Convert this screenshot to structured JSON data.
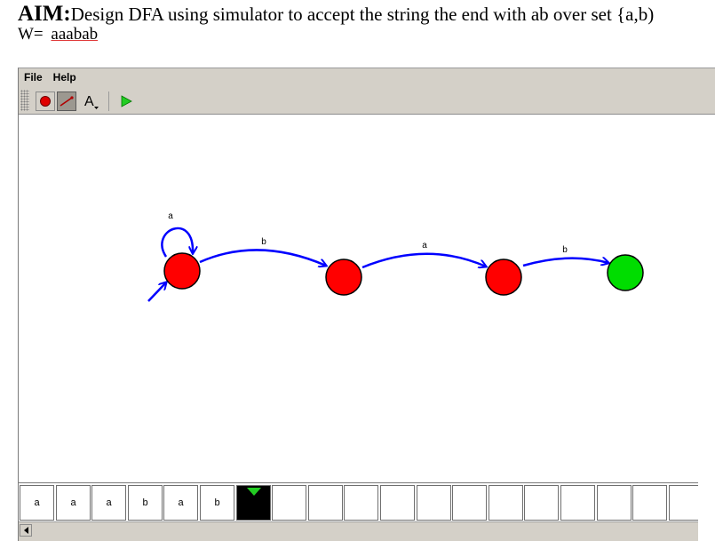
{
  "document": {
    "aim_label": "AIM:",
    "aim_text": "Design DFA using simulator to accept the string the end with ab over set {a,b)",
    "w_label": "W=",
    "w_value": "aaabab"
  },
  "menu": {
    "file": "File",
    "help": "Help"
  },
  "toolbar": {
    "state_tool_icon": "state-circle-icon",
    "transition_tool_icon": "transition-arrow-icon",
    "text_tool_label": "A",
    "run_tool_icon": "play-icon"
  },
  "automaton": {
    "colors": {
      "state": "#ff0000",
      "final_state": "#00dd00",
      "edge": "#0000ff",
      "outline": "#000000"
    },
    "states": [
      {
        "id": "q0",
        "initial": true,
        "final": false
      },
      {
        "id": "q1",
        "initial": false,
        "final": false
      },
      {
        "id": "q2",
        "initial": false,
        "final": false
      },
      {
        "id": "q3",
        "initial": false,
        "final": true
      }
    ],
    "transitions": [
      {
        "from": "q0",
        "to": "q0",
        "label": "a"
      },
      {
        "from": "q0",
        "to": "q1",
        "label": "b"
      },
      {
        "from": "q1",
        "to": "q2",
        "label": "a"
      },
      {
        "from": "q2",
        "to": "q3",
        "label": "b"
      }
    ]
  },
  "tape": {
    "cells": [
      "a",
      "a",
      "a",
      "b",
      "a",
      "b",
      "",
      "",
      "",
      "",
      "",
      "",
      "",
      "",
      "",
      "",
      "",
      "",
      "",
      ""
    ],
    "head_index": 6,
    "head_color": "#22cc22"
  }
}
